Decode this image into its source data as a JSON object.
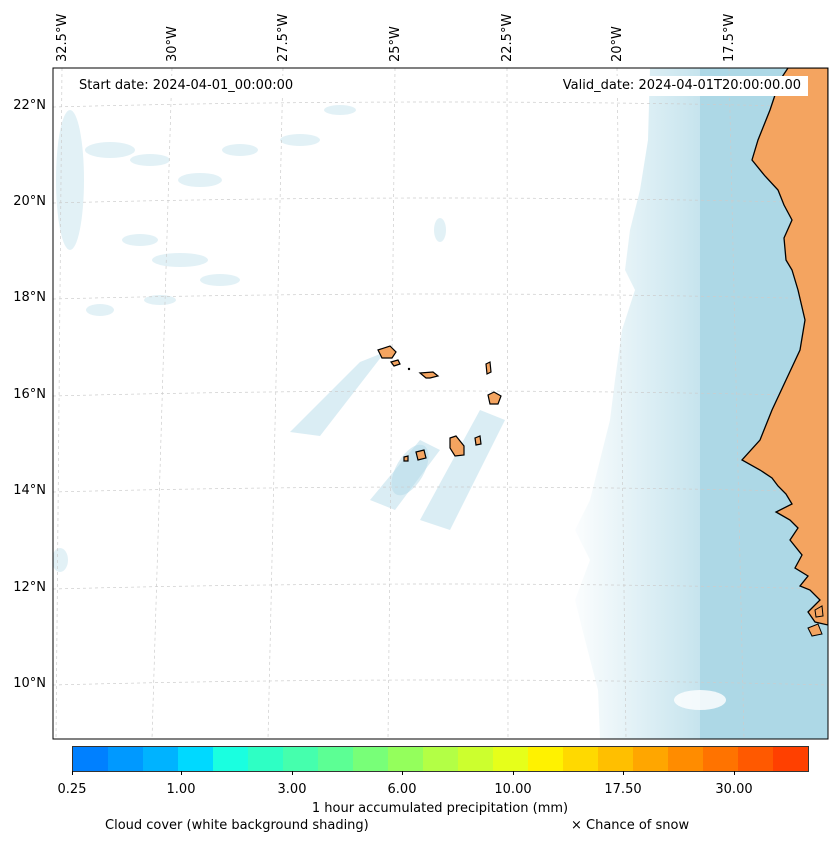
{
  "map": {
    "start_date_label": "Start date: 2024-04-01_00:00:00",
    "valid_date_label": "Valid_date: 2024-04-01T20:00:00.00",
    "lon_labels": [
      "32.5°W",
      "30°W",
      "27.5°W",
      "25°W",
      "22.5°W",
      "20°W",
      "17.5°W"
    ],
    "lat_labels": [
      "22°N",
      "20°N",
      "18°N",
      "16°N",
      "14°N",
      "12°N",
      "10°N"
    ],
    "land_color": "#f4a460",
    "cloud_color": "#add8e6",
    "ocean_color": "#ffffff"
  },
  "colorbar": {
    "title": "1 hour accumulated precipitation (mm)",
    "tick_labels": [
      "0.25",
      "1.00",
      "3.00",
      "6.00",
      "10.00",
      "17.50",
      "30.00"
    ],
    "colors": [
      "#0080ff",
      "#0099ff",
      "#00b3ff",
      "#00d9ff",
      "#1affe0",
      "#2effc4",
      "#45ffad",
      "#5cff94",
      "#78ff78",
      "#94ff5c",
      "#b3ff45",
      "#ccff2e",
      "#e6ff1a",
      "#fff200",
      "#ffd900",
      "#ffbf00",
      "#ffa600",
      "#ff8c00",
      "#ff7300",
      "#ff5900",
      "#ff4000"
    ]
  },
  "footer": {
    "cloud_note": "Cloud cover (white background shading)",
    "snow_note": "× Chance of snow"
  }
}
